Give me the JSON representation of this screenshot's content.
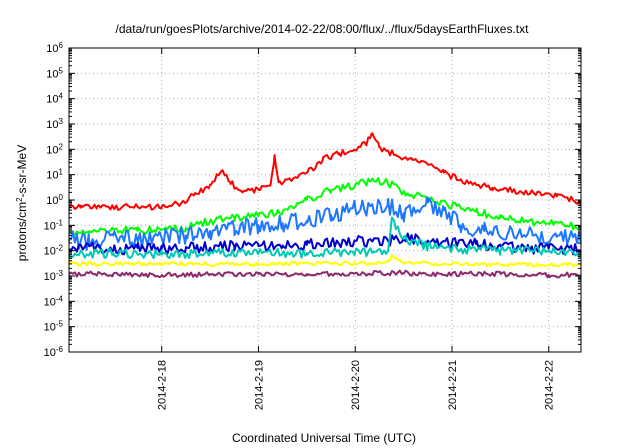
{
  "chart_data": {
    "type": "line",
    "title": "/data/run/goesPlots/archive/2014-02-22/08:00/flux/../flux/5daysEarthFluxes.txt",
    "xlabel": "Coordinated Universal Time (UTC)",
    "ylabel": "protons/cm2-s-sr-MeV",
    "ylabel_parts": {
      "pre": "protons/cm",
      "sup": "2",
      "post": "-s-sr-MeV"
    },
    "y_scale": "log",
    "ylim": [
      1e-06,
      1000000.0
    ],
    "xlim_days": [
      "2014-02-17 01:00",
      "2014-02-22 08:00"
    ],
    "grid": true,
    "legend": "none",
    "y_ticks": [
      {
        "exp": -6
      },
      {
        "exp": -5
      },
      {
        "exp": -4
      },
      {
        "exp": -3
      },
      {
        "exp": -2
      },
      {
        "exp": -1
      },
      {
        "exp": 0
      },
      {
        "exp": 1
      },
      {
        "exp": 2
      },
      {
        "exp": 3
      },
      {
        "exp": 4
      },
      {
        "exp": 5
      },
      {
        "exp": 6
      }
    ],
    "x_ticks": [
      {
        "date": "2014-02-18",
        "label": "2014-2-18"
      },
      {
        "date": "2014-02-19",
        "label": "2014-2-19"
      },
      {
        "date": "2014-02-20",
        "label": "2014-2-20"
      },
      {
        "date": "2014-02-21",
        "label": "2014-2-21"
      },
      {
        "date": "2014-02-22",
        "label": "2014-2-22"
      }
    ],
    "series": [
      {
        "color": "#ff0000",
        "points": [
          [
            "2014-02-17 01:00",
            0.5
          ],
          [
            "2014-02-17 04:00",
            0.6
          ],
          [
            "2014-02-17 08:00",
            0.55
          ],
          [
            "2014-02-17 12:00",
            0.5
          ],
          [
            "2014-02-17 16:00",
            0.55
          ],
          [
            "2014-02-17 20:00",
            0.5
          ],
          [
            "2014-02-18 00:00",
            0.55
          ],
          [
            "2014-02-18 04:00",
            0.7
          ],
          [
            "2014-02-18 08:00",
            1.5
          ],
          [
            "2014-02-18 12:00",
            4
          ],
          [
            "2014-02-18 15:00",
            15
          ],
          [
            "2014-02-18 17:00",
            5
          ],
          [
            "2014-02-18 20:00",
            2
          ],
          [
            "2014-02-19 00:00",
            2.5
          ],
          [
            "2014-02-19 03:00",
            4
          ],
          [
            "2014-02-19 04:00",
            60
          ],
          [
            "2014-02-19 05:00",
            5
          ],
          [
            "2014-02-19 08:00",
            6
          ],
          [
            "2014-02-19 12:00",
            12
          ],
          [
            "2014-02-19 16:00",
            40
          ],
          [
            "2014-02-19 20:00",
            70
          ],
          [
            "2014-02-20 00:00",
            90
          ],
          [
            "2014-02-20 03:00",
            200
          ],
          [
            "2014-02-20 04:00",
            400
          ],
          [
            "2014-02-20 06:00",
            120
          ],
          [
            "2014-02-20 10:00",
            60
          ],
          [
            "2014-02-20 14:00",
            40
          ],
          [
            "2014-02-20 18:00",
            25
          ],
          [
            "2014-02-20 22:00",
            12
          ],
          [
            "2014-02-21 02:00",
            6
          ],
          [
            "2014-02-21 06:00",
            4
          ],
          [
            "2014-02-21 10:00",
            3
          ],
          [
            "2014-02-21 14:00",
            2.5
          ],
          [
            "2014-02-21 18:00",
            2
          ],
          [
            "2014-02-21 22:00",
            1.8
          ],
          [
            "2014-02-22 02:00",
            1.4
          ],
          [
            "2014-02-22 06:00",
            1.0
          ],
          [
            "2014-02-22 08:00",
            0.8
          ]
        ]
      },
      {
        "color": "#00ff00",
        "points": [
          [
            "2014-02-17 01:00",
            0.05
          ],
          [
            "2014-02-17 06:00",
            0.06
          ],
          [
            "2014-02-17 12:00",
            0.07
          ],
          [
            "2014-02-17 18:00",
            0.06
          ],
          [
            "2014-02-18 00:00",
            0.07
          ],
          [
            "2014-02-18 06:00",
            0.08
          ],
          [
            "2014-02-18 12:00",
            0.15
          ],
          [
            "2014-02-18 18:00",
            0.2
          ],
          [
            "2014-02-19 00:00",
            0.25
          ],
          [
            "2014-02-19 06:00",
            0.35
          ],
          [
            "2014-02-19 12:00",
            1.0
          ],
          [
            "2014-02-19 18:00",
            2.5
          ],
          [
            "2014-02-20 00:00",
            4
          ],
          [
            "2014-02-20 04:00",
            6
          ],
          [
            "2014-02-20 08:00",
            5
          ],
          [
            "2014-02-20 12:00",
            2
          ],
          [
            "2014-02-20 18:00",
            1.2
          ],
          [
            "2014-02-21 00:00",
            0.6
          ],
          [
            "2014-02-21 06:00",
            0.35
          ],
          [
            "2014-02-21 12:00",
            0.2
          ],
          [
            "2014-02-21 18:00",
            0.15
          ],
          [
            "2014-02-22 00:00",
            0.12
          ],
          [
            "2014-02-22 08:00",
            0.09
          ]
        ]
      },
      {
        "color": "#1e78ff",
        "points": [
          [
            "2014-02-17 01:00",
            0.03
          ],
          [
            "2014-02-17 06:00",
            0.02
          ],
          [
            "2014-02-17 12:00",
            0.04
          ],
          [
            "2014-02-17 18:00",
            0.025
          ],
          [
            "2014-02-18 00:00",
            0.03
          ],
          [
            "2014-02-18 06:00",
            0.04
          ],
          [
            "2014-02-18 12:00",
            0.06
          ],
          [
            "2014-02-18 18:00",
            0.08
          ],
          [
            "2014-02-19 00:00",
            0.1
          ],
          [
            "2014-02-19 06:00",
            0.12
          ],
          [
            "2014-02-19 12:00",
            0.15
          ],
          [
            "2014-02-19 18:00",
            0.25
          ],
          [
            "2014-02-20 00:00",
            0.5
          ],
          [
            "2014-02-20 08:00",
            0.6
          ],
          [
            "2014-02-20 12:00",
            0.3
          ],
          [
            "2014-02-20 18:00",
            0.8
          ],
          [
            "2014-02-20 22:00",
            0.4
          ],
          [
            "2014-02-21 02:00",
            0.1
          ],
          [
            "2014-02-21 08:00",
            0.06
          ],
          [
            "2014-02-21 14:00",
            0.05
          ],
          [
            "2014-02-21 20:00",
            0.04
          ],
          [
            "2014-02-22 02:00",
            0.035
          ],
          [
            "2014-02-22 08:00",
            0.03
          ]
        ]
      },
      {
        "color": "#0000cc",
        "points": [
          [
            "2014-02-17 01:00",
            0.012
          ],
          [
            "2014-02-17 06:00",
            0.015
          ],
          [
            "2014-02-17 12:00",
            0.01
          ],
          [
            "2014-02-17 18:00",
            0.013
          ],
          [
            "2014-02-18 00:00",
            0.012
          ],
          [
            "2014-02-18 06:00",
            0.014
          ],
          [
            "2014-02-18 12:00",
            0.013
          ],
          [
            "2014-02-18 18:00",
            0.015
          ],
          [
            "2014-02-19 00:00",
            0.015
          ],
          [
            "2014-02-19 06:00",
            0.016
          ],
          [
            "2014-02-19 12:00",
            0.017
          ],
          [
            "2014-02-19 18:00",
            0.02
          ],
          [
            "2014-02-20 00:00",
            0.025
          ],
          [
            "2014-02-20 06:00",
            0.022
          ],
          [
            "2014-02-20 12:00",
            0.03
          ],
          [
            "2014-02-20 18:00",
            0.025
          ],
          [
            "2014-02-21 00:00",
            0.02
          ],
          [
            "2014-02-21 06:00",
            0.018
          ],
          [
            "2014-02-21 12:00",
            0.015
          ],
          [
            "2014-02-21 18:00",
            0.013
          ],
          [
            "2014-02-22 00:00",
            0.012
          ],
          [
            "2014-02-22 08:00",
            0.011
          ]
        ]
      },
      {
        "color": "#00c8b4",
        "points": [
          [
            "2014-02-17 01:00",
            0.007
          ],
          [
            "2014-02-17 12:00",
            0.008
          ],
          [
            "2014-02-18 00:00",
            0.007
          ],
          [
            "2014-02-18 12:00",
            0.008
          ],
          [
            "2014-02-19 00:00",
            0.008
          ],
          [
            "2014-02-19 12:00",
            0.008
          ],
          [
            "2014-02-20 00:00",
            0.009
          ],
          [
            "2014-02-20 08:00",
            0.009
          ],
          [
            "2014-02-20 09:00",
            0.15
          ],
          [
            "2014-02-20 12:00",
            0.03
          ],
          [
            "2014-02-20 18:00",
            0.015
          ],
          [
            "2014-02-21 00:00",
            0.012
          ],
          [
            "2014-02-21 12:00",
            0.01
          ],
          [
            "2014-02-22 00:00",
            0.009
          ],
          [
            "2014-02-22 08:00",
            0.008
          ]
        ]
      },
      {
        "color": "#ffff00",
        "points": [
          [
            "2014-02-17 01:00",
            0.003
          ],
          [
            "2014-02-18 00:00",
            0.003
          ],
          [
            "2014-02-19 00:00",
            0.003
          ],
          [
            "2014-02-20 00:00",
            0.0032
          ],
          [
            "2014-02-20 08:00",
            0.0035
          ],
          [
            "2014-02-20 09:00",
            0.006
          ],
          [
            "2014-02-20 12:00",
            0.0035
          ],
          [
            "2014-02-21 00:00",
            0.003
          ],
          [
            "2014-02-22 00:00",
            0.0028
          ],
          [
            "2014-02-22 08:00",
            0.0028
          ]
        ]
      },
      {
        "color": "#8b2a6b",
        "points": [
          [
            "2014-02-17 01:00",
            0.0012
          ],
          [
            "2014-02-17 12:00",
            0.0012
          ],
          [
            "2014-02-18 00:00",
            0.0011
          ],
          [
            "2014-02-18 12:00",
            0.0012
          ],
          [
            "2014-02-19 00:00",
            0.0012
          ],
          [
            "2014-02-19 12:00",
            0.0012
          ],
          [
            "2014-02-20 00:00",
            0.0013
          ],
          [
            "2014-02-20 12:00",
            0.0013
          ],
          [
            "2014-02-21 00:00",
            0.0012
          ],
          [
            "2014-02-21 12:00",
            0.0012
          ],
          [
            "2014-02-22 00:00",
            0.0011
          ],
          [
            "2014-02-22 08:00",
            0.0011
          ]
        ]
      }
    ]
  }
}
